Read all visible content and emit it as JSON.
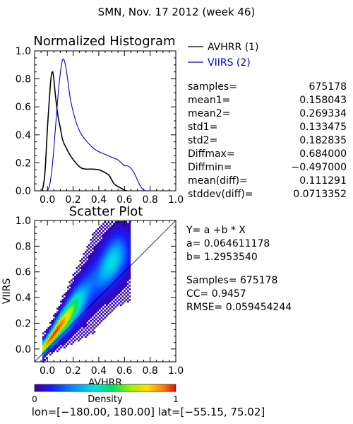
{
  "header": {
    "title": "SMN,  Nov. 17 2012 (week 46)"
  },
  "chart_data": [
    {
      "type": "line",
      "title": "Normalized Histogram",
      "xlim": [
        -0.1,
        1.0
      ],
      "ylim": [
        0.0,
        1.0
      ],
      "xticks": [
        "0.0",
        "0.2",
        "0.4",
        "0.6",
        "0.8",
        "1.0"
      ],
      "yticks": [
        "0.0",
        "0.2",
        "0.4",
        "0.6",
        "0.8",
        "1.0"
      ],
      "legend_position": "top-right (outside plot)",
      "series": [
        {
          "name": "AVHRR (1)",
          "color": "#000000",
          "x": [
            -0.04,
            -0.02,
            0.0,
            0.02,
            0.03,
            0.04,
            0.05,
            0.06,
            0.08,
            0.1,
            0.12,
            0.15,
            0.18,
            0.22,
            0.26,
            0.3,
            0.35,
            0.4,
            0.45,
            0.48,
            0.5,
            0.52,
            0.55,
            0.58,
            0.6,
            0.62
          ],
          "y": [
            0.0,
            0.12,
            0.45,
            0.72,
            0.82,
            0.85,
            0.8,
            0.7,
            0.55,
            0.45,
            0.36,
            0.3,
            0.25,
            0.2,
            0.165,
            0.155,
            0.155,
            0.15,
            0.13,
            0.11,
            0.08,
            0.05,
            0.03,
            0.015,
            0.005,
            0.0
          ]
        },
        {
          "name": "VIIRS (2)",
          "color": "#0000cc",
          "x": [
            0.0,
            0.02,
            0.04,
            0.06,
            0.08,
            0.1,
            0.12,
            0.14,
            0.16,
            0.18,
            0.22,
            0.26,
            0.3,
            0.35,
            0.4,
            0.45,
            0.5,
            0.55,
            0.6,
            0.62,
            0.64,
            0.66,
            0.68,
            0.7,
            0.72,
            0.74,
            0.76
          ],
          "y": [
            0.0,
            0.05,
            0.2,
            0.42,
            0.65,
            0.84,
            0.94,
            0.9,
            0.78,
            0.65,
            0.5,
            0.41,
            0.36,
            0.31,
            0.28,
            0.26,
            0.24,
            0.22,
            0.18,
            0.18,
            0.17,
            0.15,
            0.12,
            0.08,
            0.04,
            0.015,
            0.0
          ]
        }
      ]
    },
    {
      "type": "heatmap",
      "title": "Scatter Plot",
      "xlabel": "AVHRR",
      "ylabel": "VIIRS",
      "xlim": [
        -0.1,
        1.0
      ],
      "ylim": [
        -0.1,
        1.0
      ],
      "xticks": [
        "0.0",
        "0.2",
        "0.4",
        "0.6",
        "0.8",
        "1.0"
      ],
      "yticks": [
        "0.0",
        "0.2",
        "0.4",
        "0.6",
        "0.8",
        "1.0"
      ],
      "one_to_one_line": true,
      "density_spine": [
        [
          0.0,
          0.065
        ],
        [
          0.05,
          0.13
        ],
        [
          0.1,
          0.2
        ],
        [
          0.15,
          0.26
        ],
        [
          0.2,
          0.33
        ],
        [
          0.25,
          0.39
        ],
        [
          0.3,
          0.45
        ],
        [
          0.35,
          0.52
        ],
        [
          0.4,
          0.58
        ],
        [
          0.45,
          0.64
        ],
        [
          0.5,
          0.69
        ],
        [
          0.55,
          0.73
        ],
        [
          0.6,
          0.75
        ]
      ],
      "colorbar": {
        "label": "Density",
        "min_label": "0",
        "max_label": "1"
      }
    }
  ],
  "stats": [
    {
      "label": "samples=",
      "value": "675178"
    },
    {
      "label": "mean1=",
      "value": "0.158043"
    },
    {
      "label": "mean2=",
      "value": "0.269334"
    },
    {
      "label": "std1=",
      "value": "0.133475"
    },
    {
      "label": "std2=",
      "value": "0.182835"
    },
    {
      "label": "Diffmax=",
      "value": "0.684000"
    },
    {
      "label": "Diffmin=",
      "value": "−0.497000"
    },
    {
      "label": "mean(diff)=",
      "value": "0.111291"
    },
    {
      "label": "stddev(diff)=",
      "value": "0.0713352"
    }
  ],
  "regression": {
    "equation": "Y= a +b * X",
    "a": "a= 0.064611178",
    "b": "b= 1.2953540",
    "samples": "Samples= 675178",
    "cc": "CC=  0.9457",
    "rmse": "RMSE= 0.059454244"
  },
  "footer": {
    "range": "lon=[−180.00, 180.00] lat=[−55.15, 75.02]"
  }
}
